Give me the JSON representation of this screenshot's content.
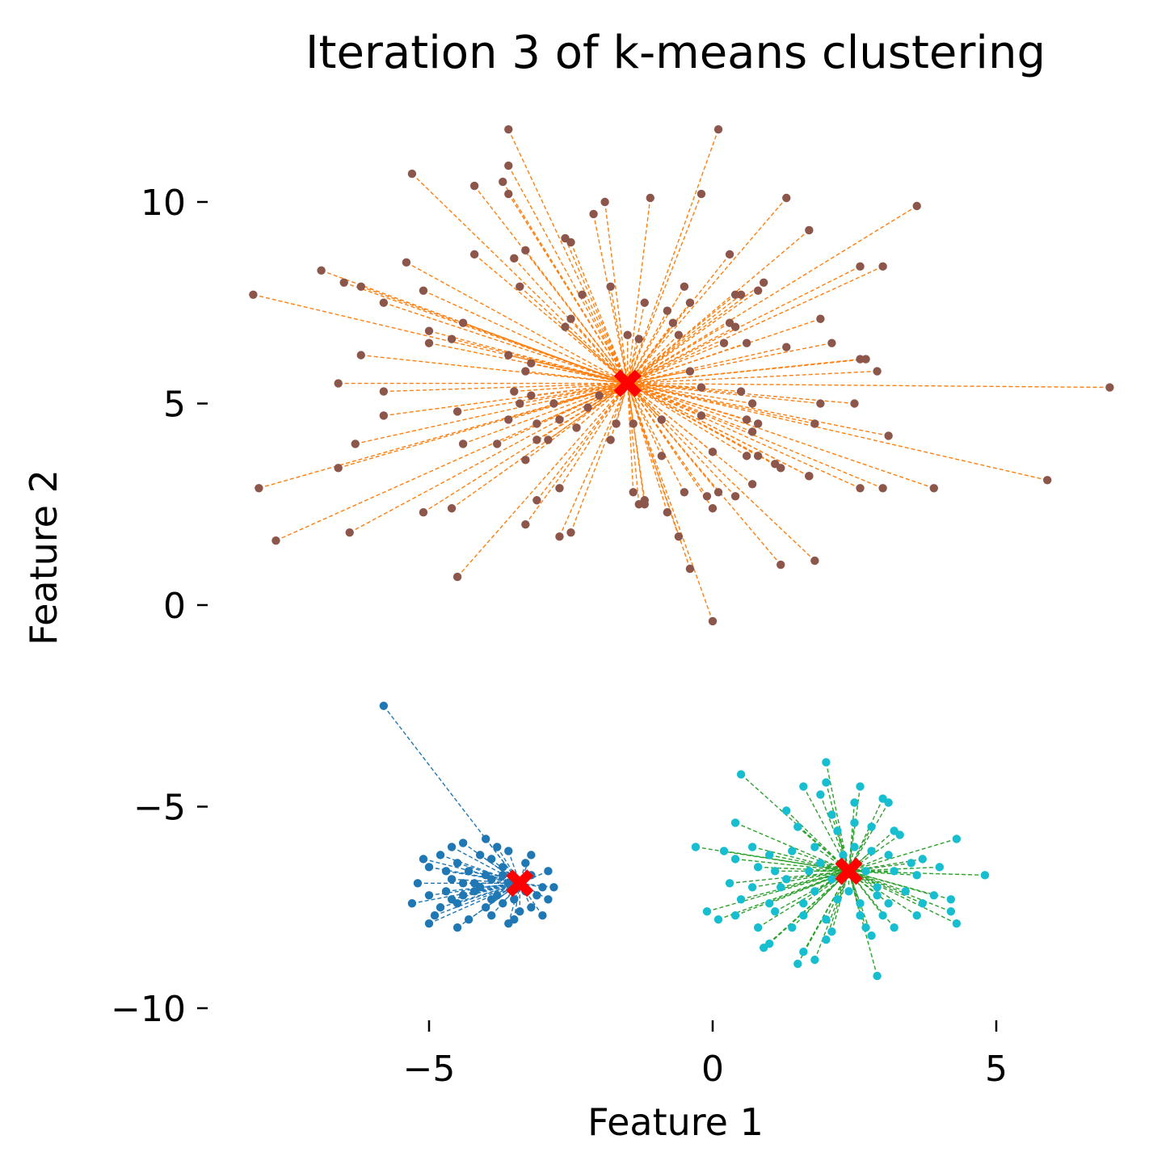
{
  "chart_data": {
    "type": "scatter",
    "title": "Iteration 3 of k-means clustering",
    "xlabel": "Feature 1",
    "ylabel": "Feature 2",
    "xlim": [
      -10.1,
      7.4
    ],
    "ylim": [
      -10.5,
      11.7
    ],
    "xticks": [
      {
        "value": -5,
        "label": "−5"
      },
      {
        "value": 0,
        "label": "0"
      },
      {
        "value": 5,
        "label": "5"
      }
    ],
    "yticks": [
      {
        "value": 10,
        "label": "10"
      },
      {
        "value": 5,
        "label": "5"
      },
      {
        "value": 0,
        "label": "0"
      },
      {
        "value": -5,
        "label": "−5"
      },
      {
        "value": -10,
        "label": "−10"
      }
    ],
    "grid": false,
    "centroid_color": "#ff0000",
    "clusters": [
      {
        "point_color": "#8c564b",
        "line_color": "#ff7f0e",
        "centroid": [
          -1.5,
          5.5
        ],
        "points": [
          [
            -3.6,
            11.8
          ],
          [
            0.1,
            11.8
          ],
          [
            -3.6,
            10.9
          ],
          [
            -5.3,
            10.7
          ],
          [
            -3.7,
            10.5
          ],
          [
            -4.2,
            10.4
          ],
          [
            -3.6,
            10.2
          ],
          [
            -1.9,
            10.0
          ],
          [
            -2.1,
            9.7
          ],
          [
            -1.1,
            10.1
          ],
          [
            -0.2,
            10.2
          ],
          [
            1.3,
            10.1
          ],
          [
            3.6,
            9.9
          ],
          [
            1.7,
            9.3
          ],
          [
            -2.6,
            9.1
          ],
          [
            -2.5,
            9.0
          ],
          [
            -3.3,
            8.8
          ],
          [
            -4.2,
            8.7
          ],
          [
            -3.5,
            8.6
          ],
          [
            0.3,
            8.7
          ],
          [
            -5.4,
            8.5
          ],
          [
            -6.9,
            8.3
          ],
          [
            -6.5,
            8.0
          ],
          [
            -6.2,
            7.9
          ],
          [
            -5.1,
            7.8
          ],
          [
            -8.1,
            7.7
          ],
          [
            -5.8,
            7.5
          ],
          [
            -1.8,
            7.9
          ],
          [
            -3.4,
            7.9
          ],
          [
            -2.3,
            7.7
          ],
          [
            -1.2,
            7.5
          ],
          [
            -0.5,
            7.9
          ],
          [
            -0.4,
            7.5
          ],
          [
            0.4,
            7.7
          ],
          [
            0.5,
            7.7
          ],
          [
            0.8,
            7.8
          ],
          [
            0.9,
            8.0
          ],
          [
            2.6,
            8.4
          ],
          [
            3.0,
            8.4
          ],
          [
            -4.4,
            7.0
          ],
          [
            -5.0,
            6.8
          ],
          [
            -5.0,
            6.5
          ],
          [
            -4.6,
            6.6
          ],
          [
            -2.5,
            7.1
          ],
          [
            -2.6,
            6.9
          ],
          [
            -0.8,
            7.3
          ],
          [
            -0.7,
            7.0
          ],
          [
            0.3,
            7.0
          ],
          [
            0.4,
            6.9
          ],
          [
            1.9,
            7.1
          ],
          [
            2.1,
            6.5
          ],
          [
            1.3,
            6.4
          ],
          [
            0.6,
            6.5
          ],
          [
            -6.2,
            6.2
          ],
          [
            -3.6,
            6.2
          ],
          [
            -3.2,
            6.0
          ],
          [
            -3.3,
            5.8
          ],
          [
            -1.5,
            6.7
          ],
          [
            -1.3,
            6.6
          ],
          [
            -0.6,
            6.7
          ],
          [
            0.2,
            6.5
          ],
          [
            2.6,
            6.1
          ],
          [
            2.7,
            6.1
          ],
          [
            2.9,
            5.8
          ],
          [
            -6.6,
            5.5
          ],
          [
            -5.8,
            5.3
          ],
          [
            -3.5,
            5.3
          ],
          [
            -3.4,
            5.0
          ],
          [
            -3.2,
            5.2
          ],
          [
            -2.8,
            5.0
          ],
          [
            -2.2,
            4.9
          ],
          [
            -2.0,
            5.2
          ],
          [
            -0.4,
            5.8
          ],
          [
            -0.2,
            5.4
          ],
          [
            0.5,
            5.3
          ],
          [
            0.7,
            5.0
          ],
          [
            1.9,
            5.0
          ],
          [
            2.5,
            5.0
          ],
          [
            -5.8,
            4.7
          ],
          [
            -4.5,
            4.8
          ],
          [
            -3.6,
            4.6
          ],
          [
            -3.1,
            4.5
          ],
          [
            -2.7,
            4.6
          ],
          [
            -2.4,
            4.4
          ],
          [
            -1.7,
            4.5
          ],
          [
            -1.4,
            4.5
          ],
          [
            -0.9,
            4.6
          ],
          [
            -0.2,
            4.7
          ],
          [
            0.6,
            4.6
          ],
          [
            0.8,
            4.5
          ],
          [
            0.7,
            4.3
          ],
          [
            1.8,
            4.5
          ],
          [
            -4.4,
            4.0
          ],
          [
            -3.8,
            4.0
          ],
          [
            -3.1,
            4.1
          ],
          [
            -2.9,
            4.1
          ],
          [
            -1.8,
            4.1
          ],
          [
            -0.9,
            3.7
          ],
          [
            -6.3,
            4.0
          ],
          [
            -6.6,
            3.4
          ],
          [
            -3.3,
            3.6
          ],
          [
            0.0,
            3.8
          ],
          [
            0.6,
            3.7
          ],
          [
            0.8,
            3.7
          ],
          [
            1.1,
            3.5
          ],
          [
            1.2,
            3.4
          ],
          [
            1.7,
            3.2
          ],
          [
            3.1,
            4.2
          ],
          [
            -8.0,
            2.9
          ],
          [
            -5.1,
            2.3
          ],
          [
            -4.6,
            2.4
          ],
          [
            -2.7,
            2.9
          ],
          [
            -3.1,
            2.6
          ],
          [
            -1.4,
            2.8
          ],
          [
            -1.3,
            2.5
          ],
          [
            -1.2,
            2.5
          ],
          [
            -1.2,
            2.6
          ],
          [
            -0.8,
            2.3
          ],
          [
            -0.5,
            2.8
          ],
          [
            -0.1,
            2.7
          ],
          [
            0.1,
            2.8
          ],
          [
            0.0,
            2.4
          ],
          [
            0.4,
            2.7
          ],
          [
            0.7,
            3.0
          ],
          [
            1.7,
            3.2
          ],
          [
            2.6,
            2.9
          ],
          [
            3.0,
            2.9
          ],
          [
            3.9,
            2.9
          ],
          [
            5.9,
            3.1
          ],
          [
            7.0,
            5.4
          ],
          [
            -7.7,
            1.6
          ],
          [
            -6.4,
            1.8
          ],
          [
            -3.3,
            2.0
          ],
          [
            -2.7,
            1.7
          ],
          [
            -2.5,
            1.8
          ],
          [
            -0.6,
            1.7
          ],
          [
            -0.4,
            0.9
          ],
          [
            1.2,
            1.0
          ],
          [
            1.8,
            1.1
          ],
          [
            -4.5,
            0.7
          ],
          [
            0.0,
            -0.4
          ]
        ]
      },
      {
        "point_color": "#1f77b4",
        "line_color": "#1f77b4",
        "centroid": [
          -3.4,
          -6.9
        ],
        "points": [
          [
            -5.8,
            -2.5
          ],
          [
            -4.4,
            -5.9
          ],
          [
            -4.0,
            -5.8
          ],
          [
            -3.8,
            -6.0
          ],
          [
            -4.6,
            -6.0
          ],
          [
            -4.8,
            -6.2
          ],
          [
            -3.6,
            -6.1
          ],
          [
            -4.1,
            -6.2
          ],
          [
            -5.1,
            -6.3
          ],
          [
            -3.9,
            -6.3
          ],
          [
            -3.2,
            -6.2
          ],
          [
            -5.0,
            -6.5
          ],
          [
            -4.5,
            -6.4
          ],
          [
            -3.7,
            -6.5
          ],
          [
            -4.3,
            -6.6
          ],
          [
            -2.9,
            -6.6
          ],
          [
            -5.2,
            -6.9
          ],
          [
            -4.6,
            -6.8
          ],
          [
            -4.2,
            -6.9
          ],
          [
            -3.9,
            -6.8
          ],
          [
            -3.6,
            -6.9
          ],
          [
            -3.2,
            -6.7
          ],
          [
            -2.8,
            -7.0
          ],
          [
            -5.0,
            -7.2
          ],
          [
            -4.7,
            -7.1
          ],
          [
            -4.4,
            -7.2
          ],
          [
            -4.1,
            -7.0
          ],
          [
            -3.8,
            -7.2
          ],
          [
            -3.5,
            -7.3
          ],
          [
            -3.1,
            -7.2
          ],
          [
            -2.9,
            -7.3
          ],
          [
            -5.3,
            -7.4
          ],
          [
            -4.8,
            -7.5
          ],
          [
            -4.5,
            -7.4
          ],
          [
            -4.0,
            -7.5
          ],
          [
            -3.7,
            -7.4
          ],
          [
            -3.4,
            -7.6
          ],
          [
            -3.0,
            -7.7
          ],
          [
            -4.9,
            -7.7
          ],
          [
            -4.3,
            -7.8
          ],
          [
            -3.9,
            -7.7
          ],
          [
            -3.5,
            -7.8
          ],
          [
            -5.0,
            -7.9
          ],
          [
            -4.5,
            -8.0
          ],
          [
            -3.6,
            -7.9
          ],
          [
            -4.2,
            -7.1
          ],
          [
            -3.3,
            -6.4
          ],
          [
            -4.7,
            -6.6
          ],
          [
            -3.0,
            -7.0
          ],
          [
            -4.0,
            -6.7
          ],
          [
            -3.7,
            -6.7
          ],
          [
            -4.4,
            -6.9
          ],
          [
            -3.3,
            -7.1
          ],
          [
            -4.6,
            -7.3
          ],
          [
            -3.9,
            -7.3
          ],
          [
            -3.2,
            -7.5
          ]
        ]
      },
      {
        "point_color": "#17becf",
        "line_color": "#2ca02c",
        "centroid": [
          2.4,
          -6.6
        ],
        "points": [
          [
            2.0,
            -3.9
          ],
          [
            0.5,
            -4.2
          ],
          [
            1.6,
            -4.5
          ],
          [
            2.0,
            -4.4
          ],
          [
            2.6,
            -4.5
          ],
          [
            1.9,
            -4.7
          ],
          [
            3.0,
            -4.8
          ],
          [
            3.1,
            -4.9
          ],
          [
            2.5,
            -4.9
          ],
          [
            1.3,
            -5.1
          ],
          [
            2.1,
            -5.2
          ],
          [
            2.5,
            -5.4
          ],
          [
            0.4,
            -5.4
          ],
          [
            1.5,
            -5.5
          ],
          [
            2.2,
            -5.6
          ],
          [
            2.8,
            -5.5
          ],
          [
            3.2,
            -5.6
          ],
          [
            4.3,
            -5.8
          ],
          [
            -0.3,
            -6.0
          ],
          [
            0.2,
            -6.1
          ],
          [
            0.7,
            -6.0
          ],
          [
            1.0,
            -6.2
          ],
          [
            1.4,
            -6.1
          ],
          [
            1.8,
            -6.0
          ],
          [
            2.3,
            -6.2
          ],
          [
            2.8,
            -6.1
          ],
          [
            3.1,
            -6.2
          ],
          [
            3.7,
            -6.3
          ],
          [
            4.0,
            -6.5
          ],
          [
            0.4,
            -6.3
          ],
          [
            0.8,
            -6.5
          ],
          [
            1.1,
            -6.6
          ],
          [
            1.7,
            -6.6
          ],
          [
            2.1,
            -6.8
          ],
          [
            2.7,
            -6.6
          ],
          [
            3.2,
            -6.6
          ],
          [
            3.6,
            -6.7
          ],
          [
            4.8,
            -6.7
          ],
          [
            0.3,
            -6.9
          ],
          [
            0.7,
            -7.0
          ],
          [
            1.2,
            -7.0
          ],
          [
            1.8,
            -7.1
          ],
          [
            2.4,
            -7.1
          ],
          [
            2.9,
            -7.0
          ],
          [
            3.4,
            -7.1
          ],
          [
            3.9,
            -7.2
          ],
          [
            0.5,
            -7.3
          ],
          [
            1.0,
            -7.4
          ],
          [
            1.6,
            -7.4
          ],
          [
            2.2,
            -7.3
          ],
          [
            2.6,
            -7.4
          ],
          [
            3.1,
            -7.4
          ],
          [
            3.7,
            -7.4
          ],
          [
            4.2,
            -7.3
          ],
          [
            -0.1,
            -7.6
          ],
          [
            0.4,
            -7.7
          ],
          [
            1.1,
            -7.6
          ],
          [
            1.6,
            -7.7
          ],
          [
            2.0,
            -7.8
          ],
          [
            2.6,
            -7.7
          ],
          [
            3.0,
            -7.7
          ],
          [
            3.6,
            -7.7
          ],
          [
            4.2,
            -7.6
          ],
          [
            0.8,
            -8.0
          ],
          [
            1.4,
            -8.0
          ],
          [
            2.1,
            -8.1
          ],
          [
            2.7,
            -8.0
          ],
          [
            3.2,
            -8.0
          ],
          [
            4.3,
            -7.9
          ],
          [
            1.0,
            -8.4
          ],
          [
            2.0,
            -8.3
          ],
          [
            2.8,
            -8.2
          ],
          [
            0.9,
            -8.5
          ],
          [
            1.6,
            -8.6
          ],
          [
            1.8,
            -8.8
          ],
          [
            1.5,
            -8.9
          ],
          [
            2.9,
            -9.2
          ],
          [
            3.3,
            -5.7
          ],
          [
            0.1,
            -7.8
          ],
          [
            1.9,
            -6.4
          ],
          [
            2.5,
            -6.0
          ],
          [
            2.9,
            -7.2
          ],
          [
            1.3,
            -6.8
          ],
          [
            3.5,
            -6.4
          ]
        ]
      }
    ]
  }
}
